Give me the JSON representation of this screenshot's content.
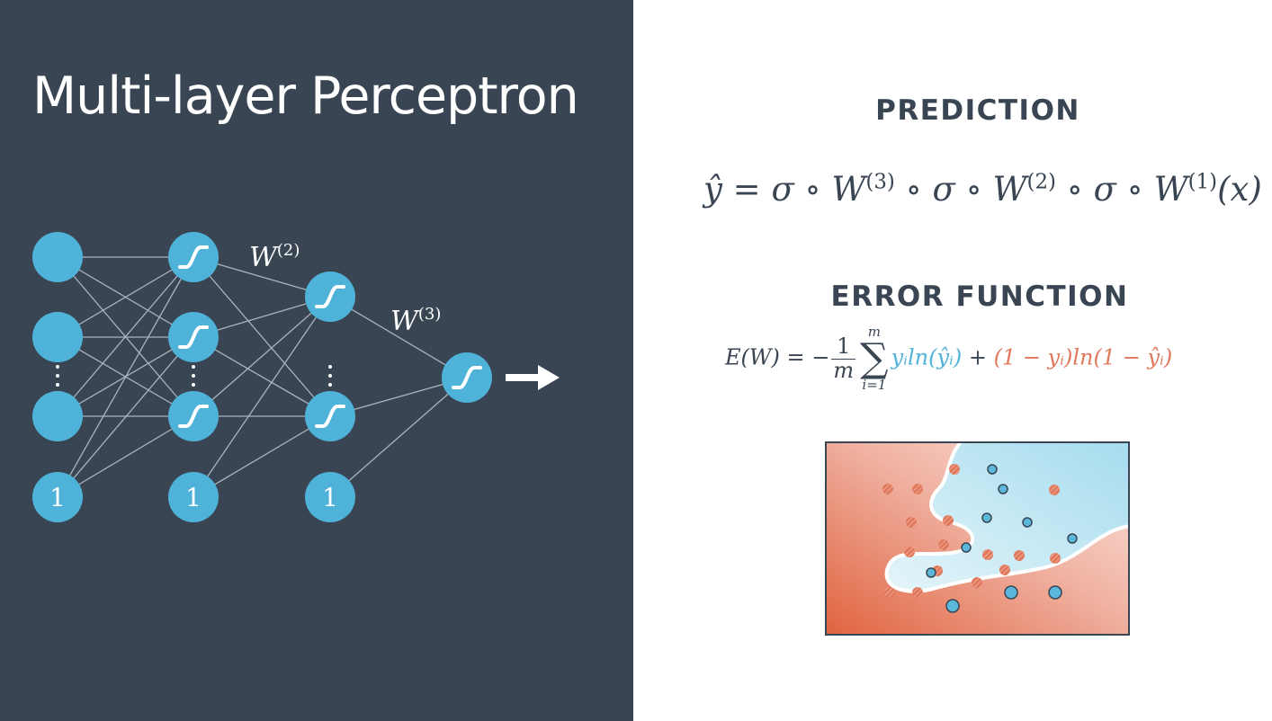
{
  "title": "Multi-layer Perceptron",
  "prediction": {
    "heading": "PREDICTION",
    "formula": {
      "lhs": "ŷ",
      "eq": " = ",
      "parts": [
        "σ ∘ W",
        "(3)",
        " ∘ σ ∘ W",
        "(2)",
        " ∘ σ ∘ W",
        "(1)",
        "(x)"
      ]
    }
  },
  "error_function": {
    "heading": "ERROR FUNCTION",
    "formula": {
      "lhs": "E(W) = −",
      "frac_num": "1",
      "frac_den": "m",
      "sum_symbol": "∑",
      "sum_upper": "m",
      "sum_lower": "i=1",
      "blue_term": "yᵢln(ŷᵢ)",
      "plus": " + ",
      "red_term": "(1 − yᵢ)ln(1 − ŷᵢ)"
    }
  },
  "network": {
    "layers": [
      {
        "nodes": [
          "input",
          "input",
          "ellipsis",
          "input",
          "bias"
        ]
      },
      {
        "nodes": [
          "sigmoid",
          "sigmoid",
          "ellipsis",
          "sigmoid",
          "bias"
        ]
      },
      {
        "nodes": [
          "sigmoid",
          "ellipsis",
          "sigmoid",
          "bias"
        ]
      },
      {
        "nodes": [
          "sigmoid"
        ]
      }
    ],
    "bias_label": "1",
    "weight_labels": [
      {
        "base": "W",
        "sup": "(2)"
      },
      {
        "base": "W",
        "sup": "(3)"
      }
    ],
    "output_icon": "right-arrow-icon",
    "node_icon": "sigmoid-curve-icon",
    "colors": {
      "background": "#394552",
      "node": "#4fb3d9",
      "edge": "#aab4bf",
      "curve": "#ffffff"
    }
  },
  "plot": {
    "colors": {
      "red_region": "#e0785c",
      "blue_region": "#b3e0ef",
      "boundary": "#ffffff",
      "frame": "#394552"
    },
    "red_points_count": 16,
    "blue_points_count": 10
  }
}
